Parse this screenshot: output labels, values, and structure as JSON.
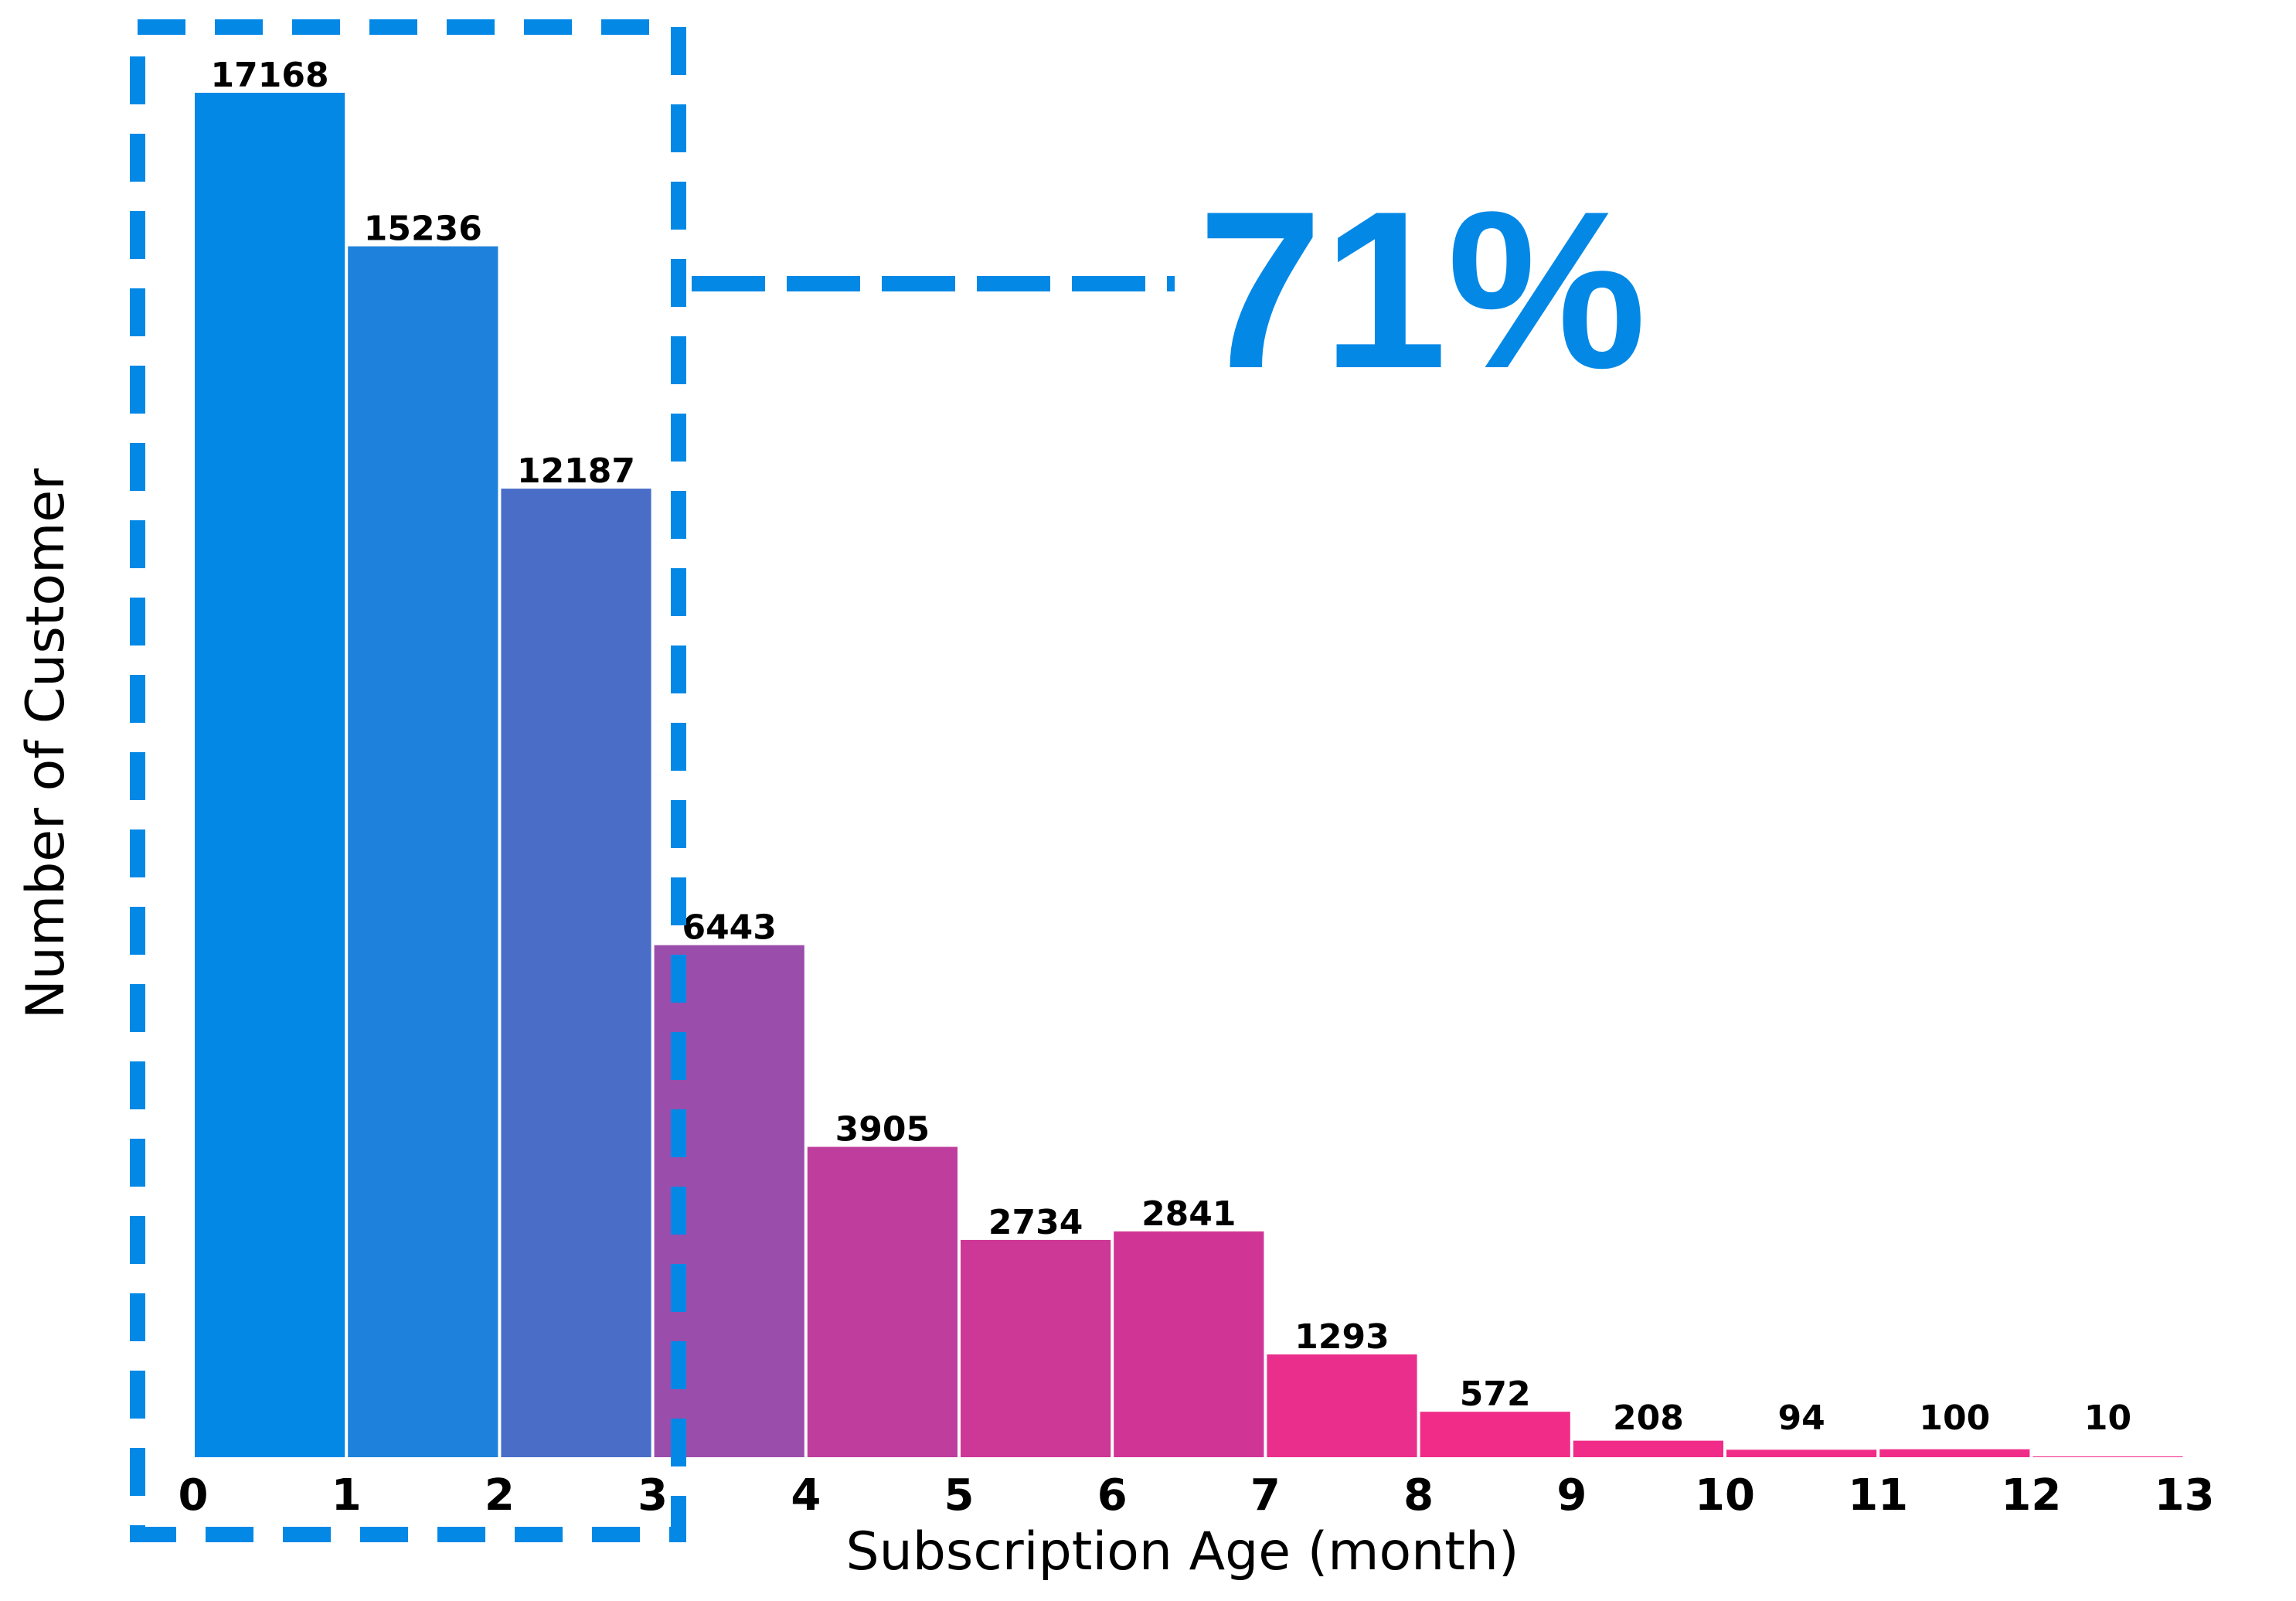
{
  "chart_data": {
    "type": "bar",
    "xlabel": "Subscription Age (month)",
    "ylabel": "Number of Customer",
    "bin_edges": [
      0,
      1,
      2,
      3,
      4,
      5,
      6,
      7,
      8,
      9,
      10,
      11,
      12,
      13
    ],
    "x_tick_labels": [
      "0",
      "1",
      "2",
      "3",
      "4",
      "5",
      "6",
      "7",
      "8",
      "9",
      "10",
      "11",
      "12",
      "13"
    ],
    "values": [
      17168,
      15236,
      12187,
      6443,
      3905,
      2734,
      2841,
      1293,
      572,
      208,
      94,
      100,
      10
    ],
    "value_labels": [
      "17168",
      "15236",
      "12187",
      "6443",
      "3905",
      "2734",
      "2841",
      "1293",
      "572",
      "208",
      "94",
      "100",
      "10"
    ],
    "ylim": [
      0,
      17168
    ],
    "grid": false,
    "bar_colors": [
      "#0388e6",
      "#1e82dc",
      "#4a6ec8",
      "#9b4dab",
      "#bf3d9c",
      "#cd3796",
      "#d03595",
      "#ea2e8c",
      "#f02c88",
      "#f02c88",
      "#f02c88",
      "#f02c88",
      "#f02c88"
    ],
    "annotation": {
      "text": "71%",
      "highlight_range": [
        0,
        3
      ],
      "color": "#0388e6"
    }
  }
}
